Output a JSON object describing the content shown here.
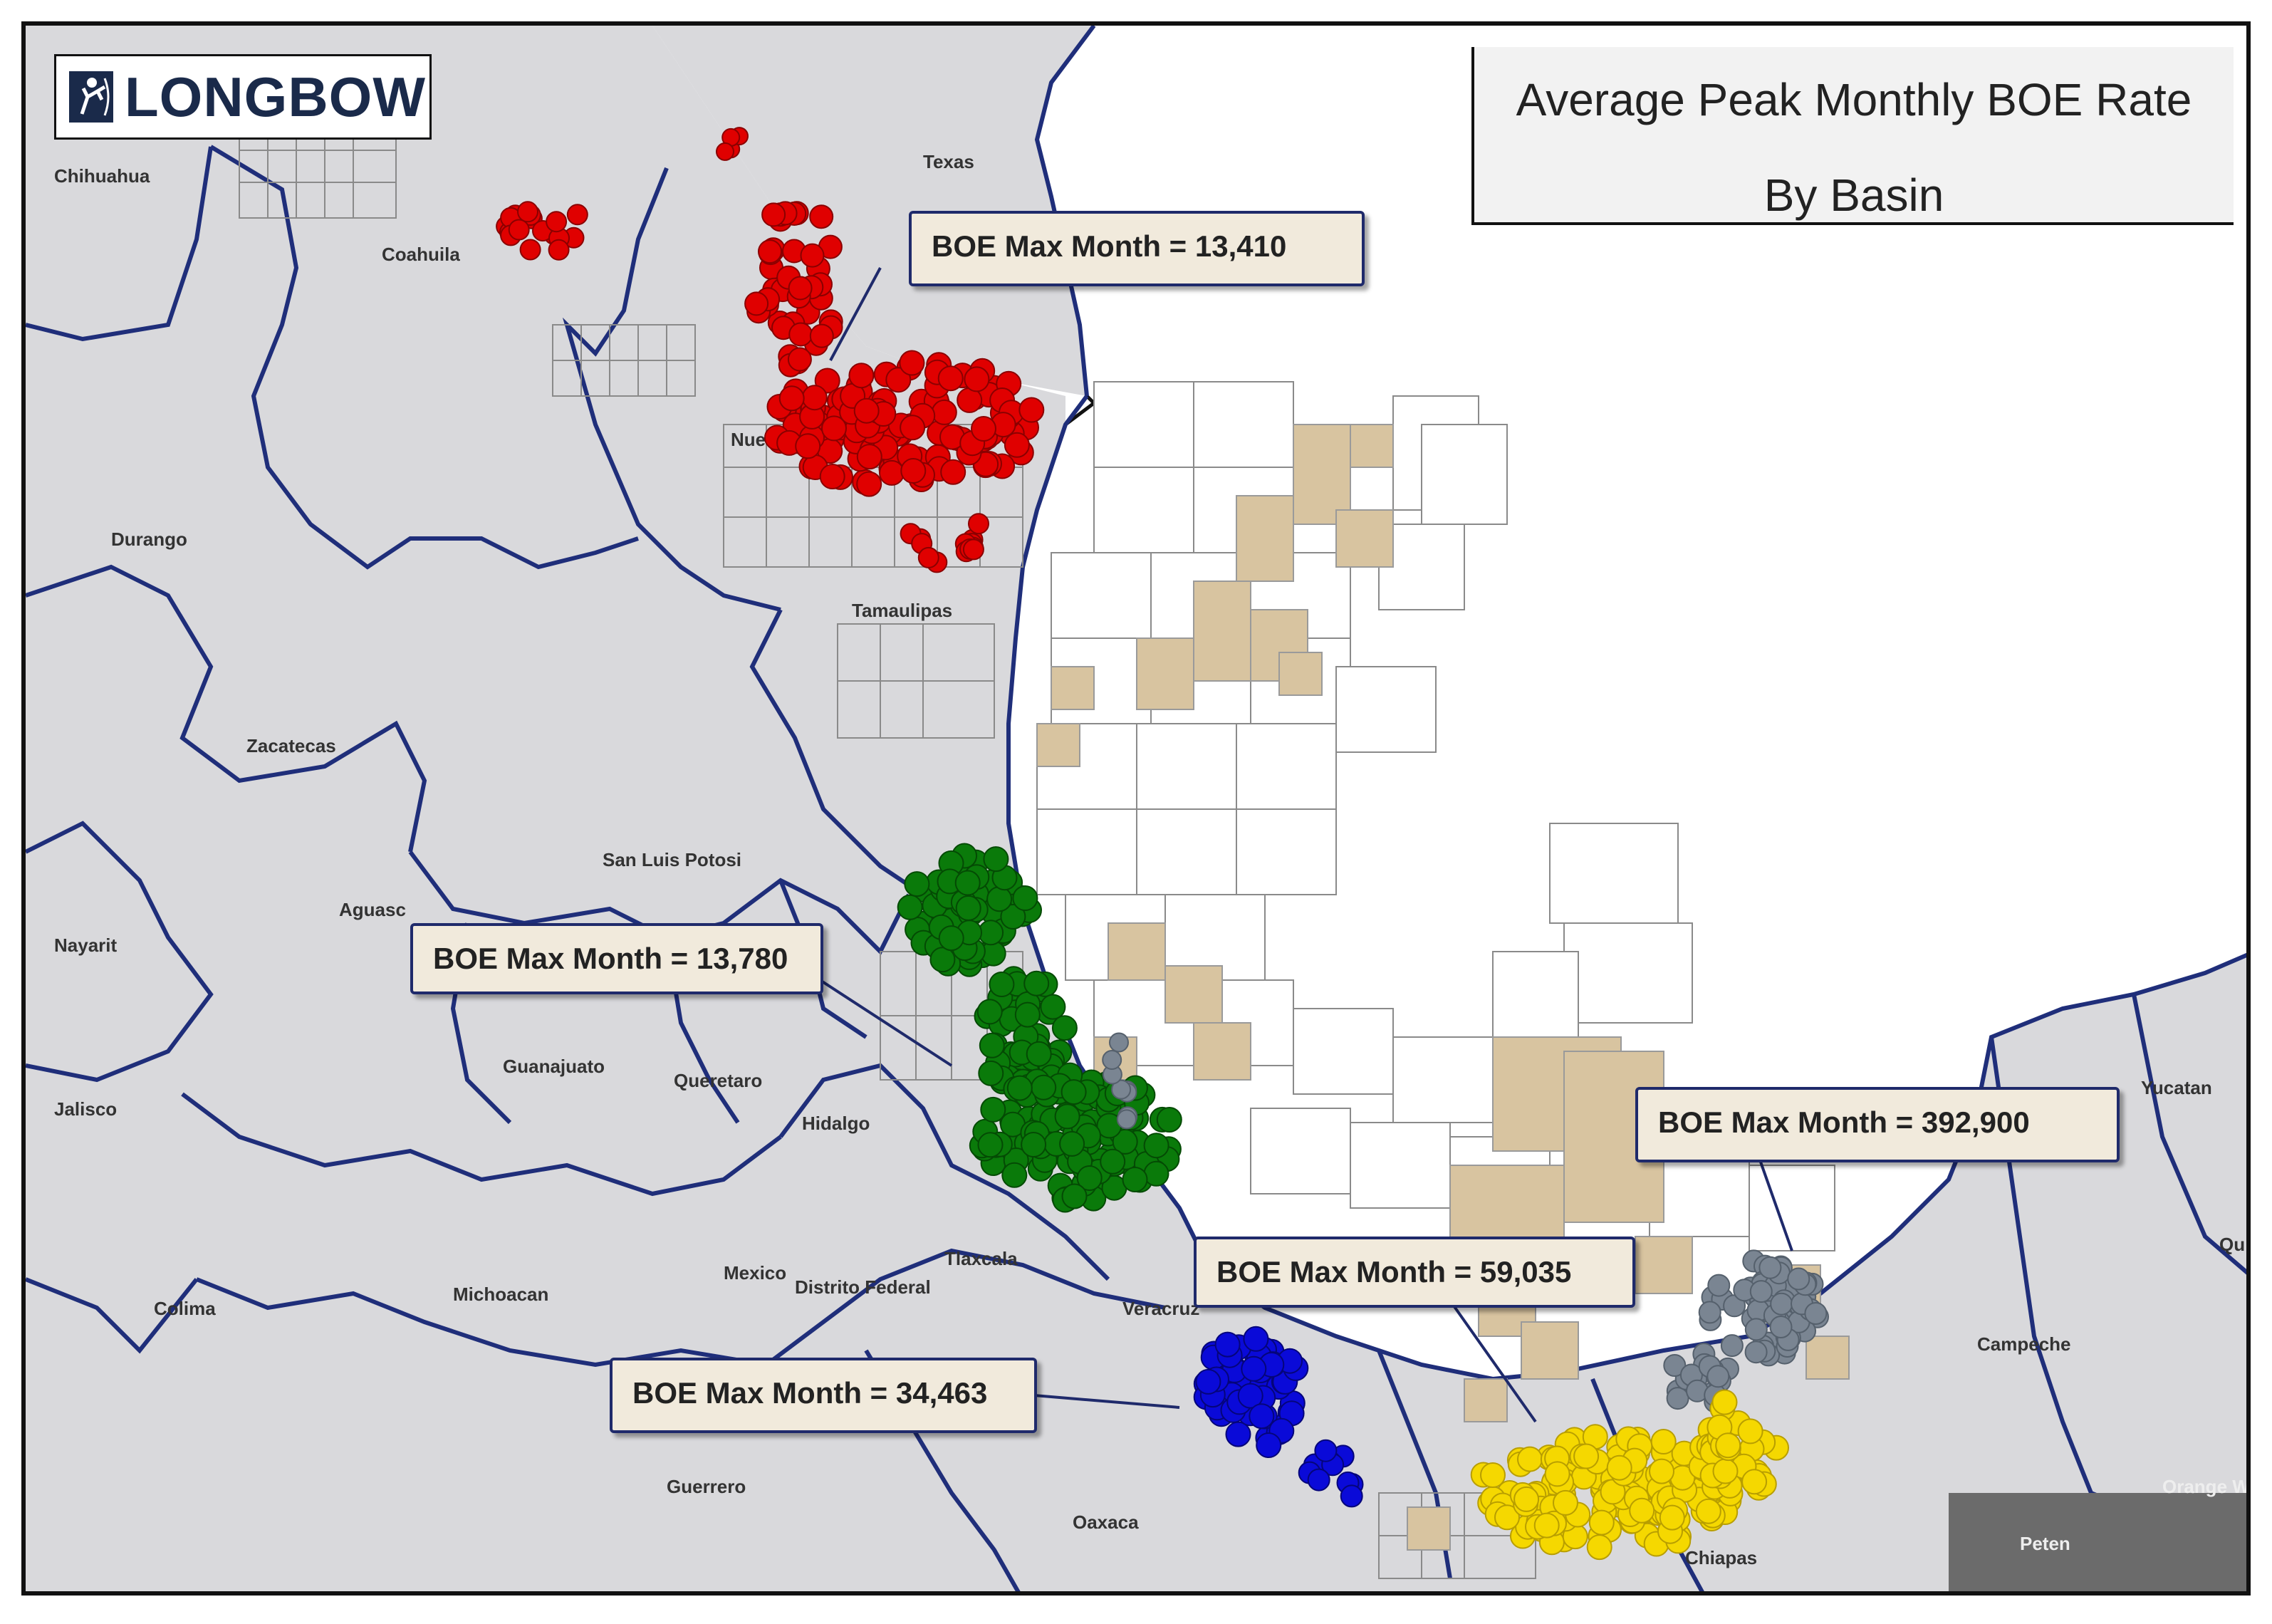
{
  "logo": {
    "text": "LONGBOW",
    "icon": "archer-icon"
  },
  "title": {
    "line1": "Average Peak Monthly BOE Rate",
    "line2": "By Basin"
  },
  "state_labels": [
    "Chihuahua",
    "Coahuila",
    "Texas",
    "Nuevo L",
    "Durango",
    "Tamaulipas",
    "Zacatecas",
    "San Luis Potosi",
    "Aguasc",
    "Nayarit",
    "Guanajuato",
    "Queretaro",
    "Hidalgo",
    "Jalisco",
    "Mexico",
    "Distrito Federal",
    "Tlaxcala",
    "Colima",
    "Michoacan",
    "Veracruz",
    "Guerrero",
    "Oaxaca",
    "Chiapas",
    "Campeche",
    "Yucatan",
    "Peten",
    "Qu",
    "Orange W"
  ],
  "callouts": [
    {
      "text": "BOE Max Month =  13,410"
    },
    {
      "text": "BOE Max Month = 13,780"
    },
    {
      "text": "BOE Max Month = 392,900"
    },
    {
      "text": "BOE Max Month = 59,035"
    },
    {
      "text": "BOE Max Month = 34,463"
    }
  ],
  "basin_colors": {
    "red": "#e00000",
    "green": "#0a7a0a",
    "gray": "#7a8592",
    "yellow": "#f5d800",
    "blue": "#0a0ad8"
  },
  "colors": {
    "land": "#d9d9dc",
    "water": "#ffffff",
    "borders": "#1f2e7a",
    "lease_fill": "#d8c4a0",
    "callout_bg": "#f1eadc",
    "callout_border": "#1f2a6b"
  }
}
